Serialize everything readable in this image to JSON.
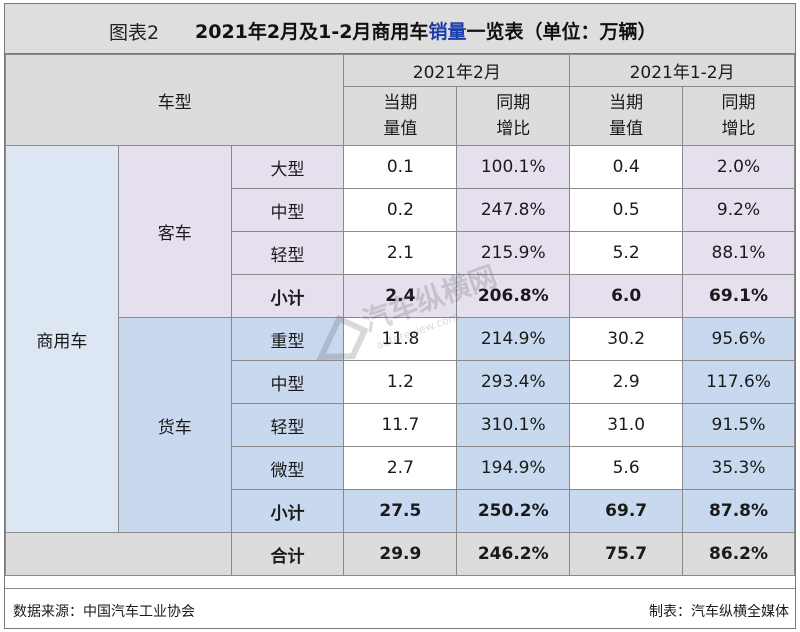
{
  "title": {
    "label": "图表2",
    "main_prefix": "2021年2月及1-2月商用车",
    "main_highlight": "销量",
    "main_suffix": "一览表（单位：万辆）"
  },
  "header": {
    "vehicle_type": "车型",
    "period_feb": "2021年2月",
    "period_jan_feb": "2021年1-2月",
    "cur_value": "当期量值",
    "yoy": "同期增比",
    "cur_value_l1": "当期",
    "cur_value_l2": "量值",
    "yoy_l1": "同期",
    "yoy_l2": "增比"
  },
  "category": "商用车",
  "groups": [
    {
      "name": "客车",
      "rows": [
        {
          "type": "大型",
          "feb_val": "0.1",
          "feb_yoy": "100.1%",
          "ytd_val": "0.4",
          "ytd_yoy": "2.0%"
        },
        {
          "type": "中型",
          "feb_val": "0.2",
          "feb_yoy": "247.8%",
          "ytd_val": "0.5",
          "ytd_yoy": "9.2%"
        },
        {
          "type": "轻型",
          "feb_val": "2.1",
          "feb_yoy": "215.9%",
          "ytd_val": "5.2",
          "ytd_yoy": "88.1%"
        }
      ],
      "subtotal": {
        "label": "小计",
        "feb_val": "2.4",
        "feb_yoy": "206.8%",
        "ytd_val": "6.0",
        "ytd_yoy": "69.1%"
      }
    },
    {
      "name": "货车",
      "rows": [
        {
          "type": "重型",
          "feb_val": "11.8",
          "feb_yoy": "214.9%",
          "ytd_val": "30.2",
          "ytd_yoy": "95.6%"
        },
        {
          "type": "中型",
          "feb_val": "1.2",
          "feb_yoy": "293.4%",
          "ytd_val": "2.9",
          "ytd_yoy": "117.6%"
        },
        {
          "type": "轻型",
          "feb_val": "11.7",
          "feb_yoy": "310.1%",
          "ytd_val": "31.0",
          "ytd_yoy": "91.5%"
        },
        {
          "type": "微型",
          "feb_val": "2.7",
          "feb_yoy": "194.9%",
          "ytd_val": "5.6",
          "ytd_yoy": "35.3%"
        }
      ],
      "subtotal": {
        "label": "小计",
        "feb_val": "27.5",
        "feb_yoy": "250.2%",
        "ytd_val": "69.7",
        "ytd_yoy": "87.8%"
      }
    }
  ],
  "total": {
    "label": "合计",
    "feb_val": "29.9",
    "feb_yoy": "246.2%",
    "ytd_val": "75.7",
    "ytd_yoy": "86.2%"
  },
  "footer": {
    "source": "数据来源：中国汽车工业协会",
    "maker": "制表：汽车纵横全媒体"
  },
  "watermark": {
    "text": "汽车纵横网",
    "sub": "autoreview.com"
  },
  "colors": {
    "lilac": "#e6e0ee",
    "blue": "#c8d8ee",
    "header_gray": "#dcdcdc",
    "highlight_text": "#1b3fa8"
  }
}
